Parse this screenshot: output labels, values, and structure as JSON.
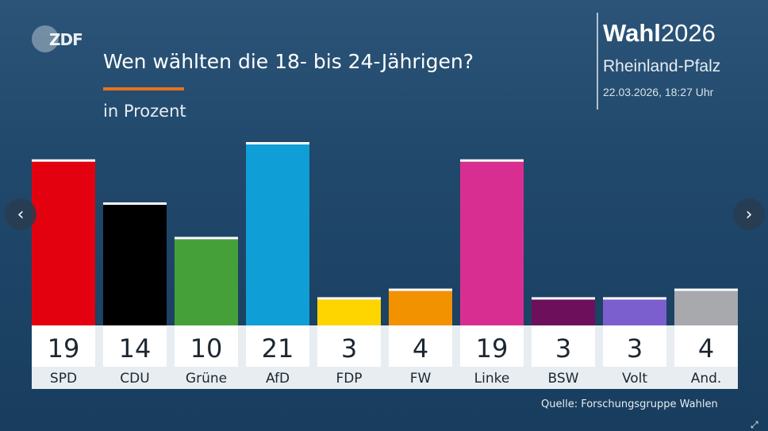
{
  "header": {
    "logo_text": "ZDF",
    "title": "Wen wählten die 18- bis 24-Jährigen?",
    "subtitle": "in Prozent"
  },
  "brand": {
    "name": "Wahl",
    "year": "2026",
    "region": "Rheinland-Pfalz",
    "timestamp": "22.03.2026, 18:27 Uhr"
  },
  "source": "Quelle: Forschungsgruppe Wahlen",
  "nav": {
    "prev_icon": "chevron-left-icon",
    "next_icon": "chevron-right-icon",
    "expand_icon": "expand-icon"
  },
  "colors": {
    "accent": "#e8731f"
  },
  "chart_data": {
    "type": "bar",
    "title": "Wen wählten die 18- bis 24-Jährigen?",
    "subtitle": "in Prozent",
    "categories": [
      "SPD",
      "CDU",
      "Grüne",
      "AfD",
      "FDP",
      "FW",
      "Linke",
      "BSW",
      "Volt",
      "And."
    ],
    "values": [
      19,
      14,
      10,
      21,
      3,
      4,
      19,
      3,
      3,
      4
    ],
    "colors": [
      "#e3000f",
      "#000000",
      "#46a03a",
      "#0f9ed5",
      "#ffd500",
      "#f39200",
      "#d92e91",
      "#6e0f5c",
      "#7b5fce",
      "#a7a9ac"
    ],
    "ylim": [
      0,
      21
    ],
    "grid": false,
    "legend": "none"
  }
}
